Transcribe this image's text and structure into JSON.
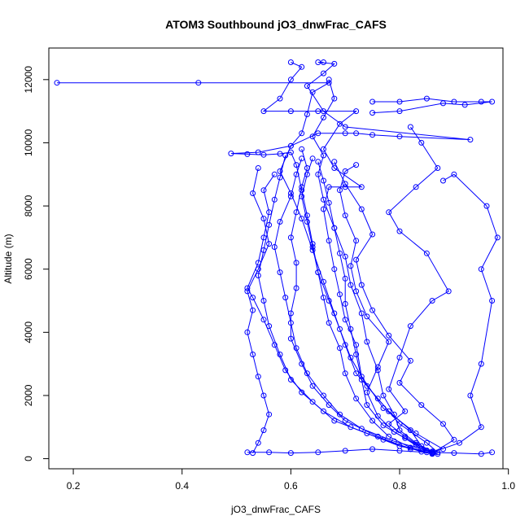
{
  "chart_data": {
    "type": "line",
    "title": "ATOM3 Southbound jO3_dnwFrac_CAFS",
    "xlabel": "jO3_dnwFrac_CAFS",
    "ylabel": "Altitude (m)",
    "xlim": [
      0.155,
      0.99
    ],
    "ylim": [
      -320,
      13000
    ],
    "x_ticks": [
      0.2,
      0.4,
      0.6,
      0.8,
      1.0
    ],
    "x_tick_labels": [
      "0.2",
      "0.4",
      "0.6",
      "0.8",
      "1.0"
    ],
    "y_ticks": [
      0,
      2000,
      4000,
      6000,
      8000,
      10000,
      12000
    ],
    "y_tick_labels": [
      "0",
      "2000",
      "4000",
      "6000",
      "8000",
      "10000",
      "12000"
    ],
    "grid": false,
    "legend": "none",
    "series_color": "#0000ff",
    "marker": "open-circle",
    "series": [
      {
        "values": [
          [
            0.86,
            150
          ],
          [
            0.84,
            400
          ],
          [
            0.82,
            900
          ],
          [
            0.78,
            1500
          ],
          [
            0.74,
            2300
          ],
          [
            0.71,
            3200
          ],
          [
            0.69,
            4100
          ],
          [
            0.67,
            5000
          ],
          [
            0.65,
            5900
          ],
          [
            0.64,
            6800
          ],
          [
            0.63,
            7700
          ],
          [
            0.62,
            8500
          ],
          [
            0.61,
            9300
          ],
          [
            0.6,
            9700
          ],
          [
            0.58,
            9650
          ],
          [
            0.55,
            9620
          ],
          [
            0.52,
            9640
          ],
          [
            0.49,
            9660
          ],
          [
            0.54,
            9700
          ],
          [
            0.6,
            9900
          ],
          [
            0.62,
            10300
          ],
          [
            0.63,
            10900
          ],
          [
            0.64,
            11600
          ],
          [
            0.67,
            11900
          ],
          [
            0.43,
            11900
          ],
          [
            0.17,
            11900
          ]
        ]
      },
      {
        "values": [
          [
            0.87,
            200
          ],
          [
            0.85,
            500
          ],
          [
            0.8,
            1100
          ],
          [
            0.76,
            1900
          ],
          [
            0.72,
            2700
          ],
          [
            0.7,
            3600
          ],
          [
            0.68,
            4600
          ],
          [
            0.66,
            5600
          ],
          [
            0.64,
            6600
          ],
          [
            0.62,
            7600
          ],
          [
            0.6,
            8400
          ],
          [
            0.58,
            9100
          ],
          [
            0.6,
            9900
          ],
          [
            0.65,
            10300
          ],
          [
            0.7,
            10300
          ],
          [
            0.72,
            10300
          ],
          [
            0.75,
            10250
          ],
          [
            0.8,
            10200
          ],
          [
            0.93,
            10100
          ],
          [
            0.7,
            10500
          ],
          [
            0.66,
            11000
          ],
          [
            0.63,
            11800
          ],
          [
            0.66,
            12200
          ],
          [
            0.68,
            12500
          ],
          [
            0.65,
            12550
          ],
          [
            0.66,
            12550
          ]
        ]
      },
      {
        "values": [
          [
            0.52,
            200
          ],
          [
            0.56,
            200
          ],
          [
            0.6,
            180
          ],
          [
            0.65,
            200
          ],
          [
            0.7,
            250
          ],
          [
            0.75,
            300
          ],
          [
            0.8,
            250
          ],
          [
            0.85,
            200
          ],
          [
            0.9,
            180
          ],
          [
            0.95,
            150
          ],
          [
            0.97,
            200
          ]
        ]
      },
      {
        "values": [
          [
            0.88,
            300
          ],
          [
            0.83,
            800
          ],
          [
            0.77,
            1600
          ],
          [
            0.73,
            2600
          ],
          [
            0.72,
            3600
          ],
          [
            0.7,
            4400
          ],
          [
            0.69,
            5200
          ],
          [
            0.68,
            6000
          ],
          [
            0.67,
            6900
          ],
          [
            0.66,
            7900
          ],
          [
            0.67,
            8600
          ],
          [
            0.7,
            8600
          ],
          [
            0.73,
            8600
          ],
          [
            0.68,
            9200
          ],
          [
            0.66,
            9800
          ],
          [
            0.69,
            10600
          ],
          [
            0.72,
            11000
          ],
          [
            0.65,
            11000
          ],
          [
            0.6,
            11000
          ],
          [
            0.55,
            11000
          ],
          [
            0.58,
            11400
          ],
          [
            0.6,
            12000
          ],
          [
            0.62,
            12400
          ],
          [
            0.6,
            12550
          ]
        ]
      },
      {
        "values": [
          [
            0.75,
            11300
          ],
          [
            0.8,
            11300
          ],
          [
            0.85,
            11400
          ],
          [
            0.9,
            11300
          ],
          [
            0.95,
            11300
          ],
          [
            0.97,
            11300
          ],
          [
            0.92,
            11200
          ],
          [
            0.88,
            11250
          ],
          [
            0.8,
            11000
          ],
          [
            0.75,
            10950
          ]
        ]
      },
      {
        "values": [
          [
            0.85,
            250
          ],
          [
            0.81,
            700
          ],
          [
            0.78,
            1100
          ],
          [
            0.81,
            1500
          ],
          [
            0.78,
            2200
          ],
          [
            0.8,
            3200
          ],
          [
            0.82,
            4200
          ],
          [
            0.86,
            5000
          ],
          [
            0.89,
            5300
          ],
          [
            0.85,
            6500
          ],
          [
            0.8,
            7200
          ],
          [
            0.78,
            7800
          ],
          [
            0.83,
            8600
          ],
          [
            0.87,
            9200
          ],
          [
            0.84,
            10000
          ],
          [
            0.82,
            10500
          ]
        ]
      },
      {
        "values": [
          [
            0.86,
            200
          ],
          [
            0.91,
            500
          ],
          [
            0.95,
            1000
          ],
          [
            0.93,
            2000
          ],
          [
            0.95,
            3000
          ],
          [
            0.97,
            5000
          ],
          [
            0.95,
            6000
          ],
          [
            0.98,
            7000
          ],
          [
            0.96,
            8000
          ],
          [
            0.9,
            9000
          ],
          [
            0.88,
            8800
          ]
        ]
      },
      {
        "values": [
          [
            0.86,
            180
          ],
          [
            0.8,
            400
          ],
          [
            0.74,
            800
          ],
          [
            0.68,
            1200
          ],
          [
            0.64,
            1800
          ],
          [
            0.6,
            2500
          ],
          [
            0.58,
            3300
          ],
          [
            0.56,
            4200
          ],
          [
            0.55,
            5000
          ],
          [
            0.54,
            5800
          ],
          [
            0.55,
            6600
          ],
          [
            0.56,
            7400
          ],
          [
            0.57,
            8200
          ],
          [
            0.58,
            8900
          ],
          [
            0.59,
            9600
          ]
        ]
      },
      {
        "values": [
          [
            0.84,
            220
          ],
          [
            0.77,
            600
          ],
          [
            0.71,
            1000
          ],
          [
            0.66,
            1500
          ],
          [
            0.62,
            2100
          ],
          [
            0.59,
            2800
          ],
          [
            0.57,
            3600
          ],
          [
            0.55,
            4400
          ],
          [
            0.53,
            5100
          ],
          [
            0.52,
            5400
          ],
          [
            0.54,
            6200
          ],
          [
            0.55,
            7000
          ],
          [
            0.56,
            7800
          ],
          [
            0.55,
            8500
          ],
          [
            0.57,
            9000
          ]
        ]
      },
      {
        "values": [
          [
            0.86,
            170
          ],
          [
            0.82,
            350
          ],
          [
            0.78,
            700
          ],
          [
            0.75,
            1200
          ],
          [
            0.72,
            1900
          ],
          [
            0.7,
            2700
          ],
          [
            0.69,
            3500
          ],
          [
            0.67,
            4300
          ],
          [
            0.66,
            5100
          ],
          [
            0.65,
            5900
          ],
          [
            0.64,
            6700
          ],
          [
            0.63,
            7500
          ],
          [
            0.62,
            8300
          ],
          [
            0.63,
            9000
          ],
          [
            0.64,
            9500
          ]
        ]
      },
      {
        "values": [
          [
            0.85,
            260
          ],
          [
            0.79,
            550
          ],
          [
            0.73,
            950
          ],
          [
            0.69,
            1400
          ],
          [
            0.66,
            2000
          ],
          [
            0.63,
            2700
          ],
          [
            0.61,
            3500
          ],
          [
            0.6,
            4300
          ],
          [
            0.59,
            5100
          ],
          [
            0.58,
            5900
          ],
          [
            0.57,
            6700
          ],
          [
            0.58,
            7500
          ],
          [
            0.6,
            8300
          ],
          [
            0.61,
            9000
          ],
          [
            0.62,
            9500
          ]
        ]
      },
      {
        "values": [
          [
            0.87,
            150
          ],
          [
            0.84,
            300
          ],
          [
            0.81,
            650
          ],
          [
            0.77,
            1050
          ],
          [
            0.74,
            1700
          ],
          [
            0.73,
            2500
          ],
          [
            0.72,
            3300
          ],
          [
            0.71,
            4100
          ],
          [
            0.7,
            4900
          ],
          [
            0.7,
            5700
          ],
          [
            0.69,
            6500
          ],
          [
            0.68,
            7300
          ],
          [
            0.67,
            8100
          ],
          [
            0.66,
            8800
          ],
          [
            0.65,
            9400
          ]
        ]
      },
      {
        "values": [
          [
            0.82,
            300
          ],
          [
            0.76,
            700
          ],
          [
            0.7,
            1200
          ],
          [
            0.67,
            1700
          ],
          [
            0.64,
            2300
          ],
          [
            0.62,
            3000
          ],
          [
            0.6,
            3800
          ],
          [
            0.6,
            4600
          ],
          [
            0.61,
            5400
          ],
          [
            0.61,
            6200
          ],
          [
            0.6,
            7000
          ],
          [
            0.61,
            7800
          ],
          [
            0.62,
            8600
          ],
          [
            0.63,
            9200
          ],
          [
            0.62,
            9800
          ]
        ]
      },
      {
        "values": [
          [
            0.86,
            200
          ],
          [
            0.83,
            450
          ],
          [
            0.79,
            850
          ],
          [
            0.76,
            1350
          ],
          [
            0.74,
            2100
          ],
          [
            0.76,
            2900
          ],
          [
            0.78,
            3700
          ],
          [
            0.74,
            4500
          ],
          [
            0.72,
            5300
          ],
          [
            0.71,
            6100
          ],
          [
            0.72,
            6900
          ],
          [
            0.7,
            7700
          ],
          [
            0.69,
            8500
          ],
          [
            0.7,
            9100
          ],
          [
            0.72,
            9300
          ]
        ]
      },
      {
        "values": [
          [
            0.86,
            170
          ],
          [
            0.9,
            600
          ],
          [
            0.88,
            1100
          ],
          [
            0.84,
            1700
          ],
          [
            0.8,
            2400
          ],
          [
            0.82,
            3100
          ],
          [
            0.78,
            3900
          ],
          [
            0.75,
            4700
          ],
          [
            0.73,
            5500
          ],
          [
            0.72,
            6300
          ],
          [
            0.75,
            7100
          ],
          [
            0.73,
            7900
          ],
          [
            0.7,
            8700
          ],
          [
            0.68,
            9400
          ]
        ]
      },
      {
        "values": [
          [
            0.53,
            180
          ],
          [
            0.54,
            500
          ],
          [
            0.55,
            900
          ],
          [
            0.56,
            1400
          ],
          [
            0.55,
            2000
          ],
          [
            0.54,
            2600
          ],
          [
            0.53,
            3300
          ],
          [
            0.52,
            4000
          ],
          [
            0.53,
            4700
          ],
          [
            0.52,
            5300
          ],
          [
            0.54,
            6000
          ],
          [
            0.56,
            6800
          ],
          [
            0.55,
            7600
          ],
          [
            0.53,
            8400
          ],
          [
            0.54,
            9200
          ]
        ]
      },
      {
        "values": [
          [
            0.86,
            230
          ],
          [
            0.83,
            500
          ],
          [
            0.8,
            900
          ],
          [
            0.79,
            1400
          ],
          [
            0.77,
            2000
          ],
          [
            0.76,
            2800
          ],
          [
            0.74,
            3700
          ],
          [
            0.73,
            4600
          ],
          [
            0.71,
            5500
          ],
          [
            0.7,
            6400
          ],
          [
            0.68,
            7300
          ],
          [
            0.66,
            8200
          ],
          [
            0.65,
            9000
          ],
          [
            0.66,
            9600
          ],
          [
            0.64,
            10200
          ],
          [
            0.66,
            10800
          ],
          [
            0.68,
            11400
          ],
          [
            0.67,
            12000
          ]
        ]
      }
    ]
  }
}
